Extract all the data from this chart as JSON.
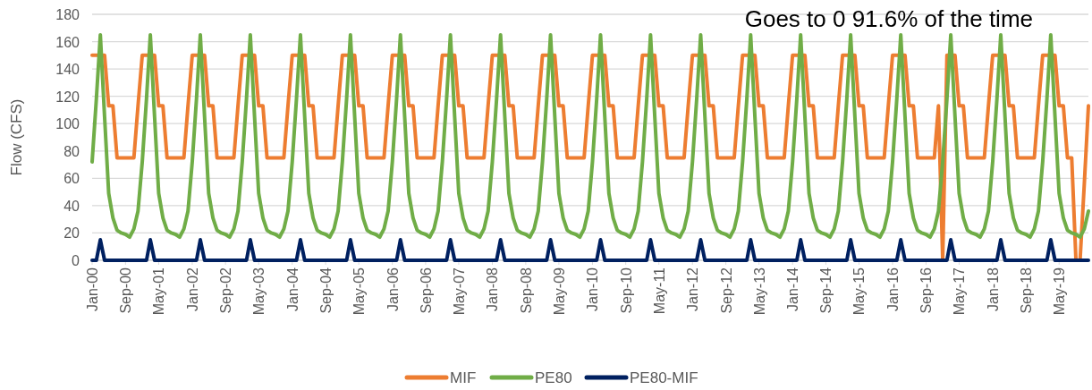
{
  "chart_data": {
    "type": "line",
    "ylabel": "Flow (CFS)",
    "annotations": [
      "Goes to 0 91.6% of the time"
    ],
    "x": [
      "2000-01",
      "2000-02",
      "2000-03",
      "2000-04",
      "2000-05",
      "2000-06",
      "2000-07",
      "2000-08",
      "2000-09",
      "2000-10",
      "2000-11",
      "2000-12",
      "2001-01",
      "2001-02",
      "2001-03",
      "2001-04",
      "2001-05",
      "2001-06",
      "2001-07",
      "2001-08",
      "2001-09",
      "2001-10",
      "2001-11",
      "2001-12",
      "2002-01",
      "2002-02",
      "2002-03",
      "2002-04",
      "2002-05",
      "2002-06",
      "2002-07",
      "2002-08",
      "2002-09",
      "2002-10",
      "2002-11",
      "2002-12",
      "2003-01",
      "2003-02",
      "2003-03",
      "2003-04",
      "2003-05",
      "2003-06",
      "2003-07",
      "2003-08",
      "2003-09",
      "2003-10",
      "2003-11",
      "2003-12",
      "2004-01",
      "2004-02",
      "2004-03",
      "2004-04",
      "2004-05",
      "2004-06",
      "2004-07",
      "2004-08",
      "2004-09",
      "2004-10",
      "2004-11",
      "2004-12",
      "2005-01",
      "2005-02",
      "2005-03",
      "2005-04",
      "2005-05",
      "2005-06",
      "2005-07",
      "2005-08",
      "2005-09",
      "2005-10",
      "2005-11",
      "2005-12",
      "2006-01",
      "2006-02",
      "2006-03",
      "2006-04",
      "2006-05",
      "2006-06",
      "2006-07",
      "2006-08",
      "2006-09",
      "2006-10",
      "2006-11",
      "2006-12",
      "2007-01",
      "2007-02",
      "2007-03",
      "2007-04",
      "2007-05",
      "2007-06",
      "2007-07",
      "2007-08",
      "2007-09",
      "2007-10",
      "2007-11",
      "2007-12",
      "2008-01",
      "2008-02",
      "2008-03",
      "2008-04",
      "2008-05",
      "2008-06",
      "2008-07",
      "2008-08",
      "2008-09",
      "2008-10",
      "2008-11",
      "2008-12",
      "2009-01",
      "2009-02",
      "2009-03",
      "2009-04",
      "2009-05",
      "2009-06",
      "2009-07",
      "2009-08",
      "2009-09",
      "2009-10",
      "2009-11",
      "2009-12",
      "2010-01",
      "2010-02",
      "2010-03",
      "2010-04",
      "2010-05",
      "2010-06",
      "2010-07",
      "2010-08",
      "2010-09",
      "2010-10",
      "2010-11",
      "2010-12",
      "2011-01",
      "2011-02",
      "2011-03",
      "2011-04",
      "2011-05",
      "2011-06",
      "2011-07",
      "2011-08",
      "2011-09",
      "2011-10",
      "2011-11",
      "2011-12",
      "2012-01",
      "2012-02",
      "2012-03",
      "2012-04",
      "2012-05",
      "2012-06",
      "2012-07",
      "2012-08",
      "2012-09",
      "2012-10",
      "2012-11",
      "2012-12",
      "2013-01",
      "2013-02",
      "2013-03",
      "2013-04",
      "2013-05",
      "2013-06",
      "2013-07",
      "2013-08",
      "2013-09",
      "2013-10",
      "2013-11",
      "2013-12",
      "2014-01",
      "2014-02",
      "2014-03",
      "2014-04",
      "2014-05",
      "2014-06",
      "2014-07",
      "2014-08",
      "2014-09",
      "2014-10",
      "2014-11",
      "2014-12",
      "2015-01",
      "2015-02",
      "2015-03",
      "2015-04",
      "2015-05",
      "2015-06",
      "2015-07",
      "2015-08",
      "2015-09",
      "2015-10",
      "2015-11",
      "2015-12",
      "2016-01",
      "2016-02",
      "2016-03",
      "2016-04",
      "2016-05",
      "2016-06",
      "2016-07",
      "2016-08",
      "2016-09",
      "2016-10",
      "2016-11",
      "2016-12",
      "2017-01",
      "2017-02",
      "2017-03",
      "2017-04",
      "2017-05",
      "2017-06",
      "2017-07",
      "2017-08",
      "2017-09",
      "2017-10",
      "2017-11",
      "2017-12",
      "2018-01",
      "2018-02",
      "2018-03",
      "2018-04",
      "2018-05",
      "2018-06",
      "2018-07",
      "2018-08",
      "2018-09",
      "2018-10",
      "2018-11",
      "2018-12",
      "2019-01",
      "2019-02",
      "2019-03",
      "2019-04",
      "2019-05",
      "2019-06",
      "2019-07",
      "2019-08",
      "2019-09",
      "2019-10",
      "2019-11",
      "2019-12"
    ],
    "series": [
      {
        "name": "MIF",
        "color": "#ed7d31",
        "values": [
          150,
          150,
          150,
          150,
          113,
          113,
          75,
          75,
          75,
          75,
          75,
          113,
          150,
          150,
          150,
          150,
          113,
          113,
          75,
          75,
          75,
          75,
          75,
          113,
          150,
          150,
          150,
          150,
          113,
          113,
          75,
          75,
          75,
          75,
          75,
          113,
          150,
          150,
          150,
          150,
          113,
          113,
          75,
          75,
          75,
          75,
          75,
          113,
          150,
          150,
          150,
          150,
          113,
          113,
          75,
          75,
          75,
          75,
          75,
          113,
          150,
          150,
          150,
          150,
          113,
          113,
          75,
          75,
          75,
          75,
          75,
          113,
          150,
          150,
          150,
          150,
          113,
          113,
          75,
          75,
          75,
          75,
          75,
          113,
          150,
          150,
          150,
          150,
          113,
          113,
          75,
          75,
          75,
          75,
          75,
          113,
          150,
          150,
          150,
          150,
          113,
          113,
          75,
          75,
          75,
          75,
          75,
          113,
          150,
          150,
          150,
          150,
          113,
          113,
          75,
          75,
          75,
          75,
          75,
          113,
          150,
          150,
          150,
          150,
          113,
          113,
          75,
          75,
          75,
          75,
          75,
          113,
          150,
          150,
          150,
          150,
          113,
          113,
          75,
          75,
          75,
          75,
          75,
          113,
          150,
          150,
          150,
          150,
          113,
          113,
          75,
          75,
          75,
          75,
          75,
          113,
          150,
          150,
          150,
          150,
          113,
          113,
          75,
          75,
          75,
          75,
          75,
          113,
          150,
          150,
          150,
          150,
          113,
          113,
          75,
          75,
          75,
          75,
          75,
          113,
          150,
          150,
          150,
          150,
          113,
          113,
          75,
          75,
          75,
          75,
          75,
          113,
          150,
          150,
          150,
          150,
          113,
          113,
          75,
          75,
          75,
          75,
          75,
          113,
          0,
          150,
          150,
          150,
          113,
          113,
          75,
          75,
          75,
          75,
          75,
          113,
          150,
          150,
          150,
          150,
          113,
          113,
          75,
          75,
          75,
          75,
          75,
          113,
          150,
          150,
          150,
          150,
          113,
          113,
          75,
          75,
          0,
          0,
          56,
          113
        ]
      },
      {
        "name": "PE80",
        "color": "#70ad47",
        "values": [
          72,
          118,
          165,
          105,
          49,
          31,
          22,
          20,
          19,
          17,
          23,
          36,
          72,
          118,
          165,
          105,
          49,
          31,
          22,
          20,
          19,
          17,
          23,
          36,
          72,
          118,
          165,
          105,
          49,
          31,
          22,
          20,
          19,
          17,
          23,
          36,
          72,
          118,
          165,
          105,
          49,
          31,
          22,
          20,
          19,
          17,
          23,
          36,
          72,
          118,
          165,
          105,
          49,
          31,
          22,
          20,
          19,
          17,
          23,
          36,
          72,
          118,
          165,
          105,
          49,
          31,
          22,
          20,
          19,
          17,
          23,
          36,
          72,
          118,
          165,
          105,
          49,
          31,
          22,
          20,
          19,
          17,
          23,
          36,
          72,
          118,
          165,
          105,
          49,
          31,
          22,
          20,
          19,
          17,
          23,
          36,
          72,
          118,
          165,
          105,
          49,
          31,
          22,
          20,
          19,
          17,
          23,
          36,
          72,
          118,
          165,
          105,
          49,
          31,
          22,
          20,
          19,
          17,
          23,
          36,
          72,
          118,
          165,
          105,
          49,
          31,
          22,
          20,
          19,
          17,
          23,
          36,
          72,
          118,
          165,
          105,
          49,
          31,
          22,
          20,
          19,
          17,
          23,
          36,
          72,
          118,
          165,
          105,
          49,
          31,
          22,
          20,
          19,
          17,
          23,
          36,
          72,
          118,
          165,
          105,
          49,
          31,
          22,
          20,
          19,
          17,
          23,
          36,
          72,
          118,
          165,
          105,
          49,
          31,
          22,
          20,
          19,
          17,
          23,
          36,
          72,
          118,
          165,
          105,
          49,
          31,
          22,
          20,
          19,
          17,
          23,
          36,
          72,
          118,
          165,
          105,
          49,
          31,
          22,
          20,
          19,
          17,
          23,
          36,
          72,
          118,
          165,
          105,
          49,
          31,
          22,
          20,
          19,
          17,
          23,
          36,
          72,
          118,
          165,
          105,
          49,
          31,
          22,
          20,
          19,
          17,
          23,
          36,
          72,
          118,
          165,
          105,
          49,
          31,
          22,
          20,
          19,
          17,
          23,
          36
        ]
      },
      {
        "name": "PE80-MIF",
        "color": "#002060",
        "values": [
          0,
          0,
          15,
          0,
          0,
          0,
          0,
          0,
          0,
          0,
          0,
          0,
          0,
          0,
          15,
          0,
          0,
          0,
          0,
          0,
          0,
          0,
          0,
          0,
          0,
          0,
          15,
          0,
          0,
          0,
          0,
          0,
          0,
          0,
          0,
          0,
          0,
          0,
          15,
          0,
          0,
          0,
          0,
          0,
          0,
          0,
          0,
          0,
          0,
          0,
          15,
          0,
          0,
          0,
          0,
          0,
          0,
          0,
          0,
          0,
          0,
          0,
          15,
          0,
          0,
          0,
          0,
          0,
          0,
          0,
          0,
          0,
          0,
          0,
          15,
          0,
          0,
          0,
          0,
          0,
          0,
          0,
          0,
          0,
          0,
          0,
          15,
          0,
          0,
          0,
          0,
          0,
          0,
          0,
          0,
          0,
          0,
          0,
          15,
          0,
          0,
          0,
          0,
          0,
          0,
          0,
          0,
          0,
          0,
          0,
          15,
          0,
          0,
          0,
          0,
          0,
          0,
          0,
          0,
          0,
          0,
          0,
          15,
          0,
          0,
          0,
          0,
          0,
          0,
          0,
          0,
          0,
          0,
          0,
          15,
          0,
          0,
          0,
          0,
          0,
          0,
          0,
          0,
          0,
          0,
          0,
          15,
          0,
          0,
          0,
          0,
          0,
          0,
          0,
          0,
          0,
          0,
          0,
          15,
          0,
          0,
          0,
          0,
          0,
          0,
          0,
          0,
          0,
          0,
          0,
          15,
          0,
          0,
          0,
          0,
          0,
          0,
          0,
          0,
          0,
          0,
          0,
          15,
          0,
          0,
          0,
          0,
          0,
          0,
          0,
          0,
          0,
          0,
          0,
          15,
          0,
          0,
          0,
          0,
          0,
          0,
          0,
          0,
          0,
          0,
          0,
          15,
          0,
          0,
          0,
          0,
          0,
          0,
          0,
          0,
          0,
          0,
          0,
          15,
          0,
          0,
          0,
          0,
          0,
          0,
          0,
          0,
          0,
          0,
          0,
          15,
          0,
          0,
          0,
          0,
          0,
          0,
          0,
          0,
          0
        ]
      }
    ],
    "xlim": [
      "2000-01",
      "2019-12"
    ],
    "xticks": [
      {
        "value": "2000-01",
        "label": "Jan-00"
      },
      {
        "value": "2000-09",
        "label": "Sep-00"
      },
      {
        "value": "2001-05",
        "label": "May-01"
      },
      {
        "value": "2002-01",
        "label": "Jan-02"
      },
      {
        "value": "2002-09",
        "label": "Sep-02"
      },
      {
        "value": "2003-05",
        "label": "May-03"
      },
      {
        "value": "2004-01",
        "label": "Jan-04"
      },
      {
        "value": "2004-09",
        "label": "Sep-04"
      },
      {
        "value": "2005-05",
        "label": "May-05"
      },
      {
        "value": "2006-01",
        "label": "Jan-06"
      },
      {
        "value": "2006-09",
        "label": "Sep-06"
      },
      {
        "value": "2007-05",
        "label": "May-07"
      },
      {
        "value": "2008-01",
        "label": "Jan-08"
      },
      {
        "value": "2008-09",
        "label": "Sep-08"
      },
      {
        "value": "2009-05",
        "label": "May-09"
      },
      {
        "value": "2010-01",
        "label": "Jan-10"
      },
      {
        "value": "2010-09",
        "label": "Sep-10"
      },
      {
        "value": "2011-05",
        "label": "May-11"
      },
      {
        "value": "2012-01",
        "label": "Jan-12"
      },
      {
        "value": "2012-09",
        "label": "Sep-12"
      },
      {
        "value": "2013-05",
        "label": "May-13"
      },
      {
        "value": "2014-01",
        "label": "Jan-14"
      },
      {
        "value": "2014-09",
        "label": "Sep-14"
      },
      {
        "value": "2015-05",
        "label": "May-15"
      },
      {
        "value": "2016-01",
        "label": "Jan-16"
      },
      {
        "value": "2016-09",
        "label": "Sep-16"
      },
      {
        "value": "2017-05",
        "label": "May-17"
      },
      {
        "value": "2018-01",
        "label": "Jan-18"
      },
      {
        "value": "2018-09",
        "label": "Sep-18"
      },
      {
        "value": "2019-05",
        "label": "May-19"
      }
    ],
    "ylim": [
      0,
      180
    ],
    "yticks": [
      0,
      20,
      40,
      60,
      80,
      100,
      120,
      140,
      160,
      180
    ],
    "grid": "y",
    "legend": "bottom",
    "marker": "none",
    "line_style": "solid"
  }
}
